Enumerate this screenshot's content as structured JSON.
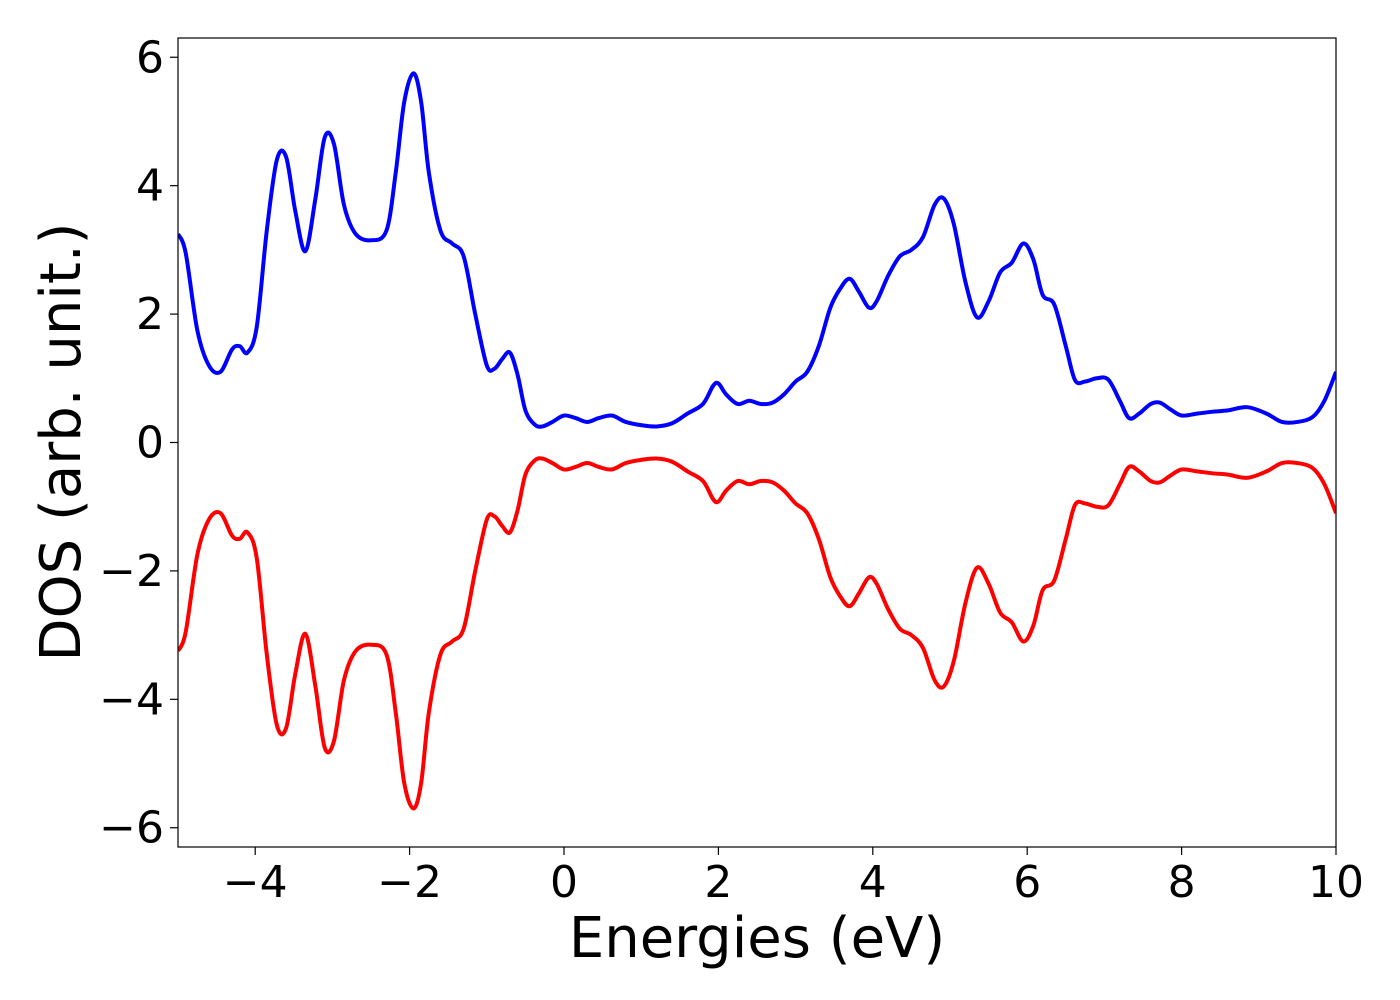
{
  "chart_data": {
    "type": "line",
    "title": "",
    "xlabel": "Energies (eV)",
    "ylabel": "DOS (arb. unit.)",
    "xlim": [
      -5,
      10
    ],
    "ylim": [
      -6.3,
      6.3
    ],
    "xticks": [
      -4,
      -2,
      0,
      2,
      4,
      6,
      8,
      10
    ],
    "xtick_labels": [
      "−4",
      "−2",
      "0",
      "2",
      "4",
      "6",
      "8",
      "10"
    ],
    "yticks": [
      -6,
      -4,
      -2,
      0,
      2,
      4,
      6
    ],
    "ytick_labels": [
      "−6",
      "−4",
      "−2",
      "0",
      "2",
      "4",
      "6"
    ],
    "grid": false,
    "legend": "none",
    "series": [
      {
        "color": "#0000ff",
        "x": [
          -5.0,
          -4.9,
          -4.75,
          -4.6,
          -4.45,
          -4.3,
          -4.2,
          -4.1,
          -3.98,
          -3.85,
          -3.72,
          -3.6,
          -3.48,
          -3.35,
          -3.22,
          -3.1,
          -2.98,
          -2.85,
          -2.7,
          -2.5,
          -2.3,
          -2.18,
          -2.07,
          -1.95,
          -1.85,
          -1.75,
          -1.6,
          -1.45,
          -1.3,
          -1.15,
          -1.0,
          -0.9,
          -0.8,
          -0.7,
          -0.6,
          -0.5,
          -0.38,
          -0.28,
          -0.15,
          0.0,
          0.15,
          0.3,
          0.45,
          0.62,
          0.8,
          1.0,
          1.2,
          1.4,
          1.6,
          1.8,
          1.93,
          2.0,
          2.1,
          2.25,
          2.4,
          2.55,
          2.7,
          2.85,
          3.0,
          3.15,
          3.3,
          3.45,
          3.58,
          3.7,
          3.82,
          3.95,
          4.05,
          4.2,
          4.35,
          4.5,
          4.65,
          4.8,
          4.92,
          5.05,
          5.2,
          5.35,
          5.5,
          5.65,
          5.8,
          5.95,
          6.08,
          6.2,
          6.35,
          6.5,
          6.62,
          6.75,
          6.9,
          7.05,
          7.2,
          7.32,
          7.45,
          7.6,
          7.72,
          7.85,
          8.0,
          8.2,
          8.4,
          8.6,
          8.85,
          9.1,
          9.3,
          9.5,
          9.7,
          9.85,
          10.0
        ],
        "y": [
          3.25,
          2.95,
          1.75,
          1.2,
          1.1,
          1.45,
          1.5,
          1.4,
          1.8,
          3.3,
          4.4,
          4.45,
          3.6,
          2.98,
          3.8,
          4.75,
          4.65,
          3.7,
          3.25,
          3.15,
          3.3,
          4.2,
          5.3,
          5.75,
          5.3,
          4.2,
          3.3,
          3.1,
          2.9,
          2.0,
          1.2,
          1.15,
          1.3,
          1.4,
          1.05,
          0.5,
          0.28,
          0.25,
          0.32,
          0.42,
          0.38,
          0.32,
          0.38,
          0.42,
          0.32,
          0.27,
          0.25,
          0.3,
          0.45,
          0.6,
          0.88,
          0.92,
          0.75,
          0.6,
          0.65,
          0.6,
          0.62,
          0.75,
          0.95,
          1.1,
          1.5,
          2.1,
          2.4,
          2.55,
          2.35,
          2.1,
          2.2,
          2.6,
          2.9,
          3.0,
          3.2,
          3.7,
          3.8,
          3.4,
          2.5,
          1.95,
          2.2,
          2.65,
          2.8,
          3.1,
          2.85,
          2.3,
          2.15,
          1.5,
          0.97,
          0.95,
          1.0,
          0.98,
          0.65,
          0.38,
          0.45,
          0.6,
          0.62,
          0.52,
          0.42,
          0.45,
          0.48,
          0.5,
          0.55,
          0.45,
          0.32,
          0.32,
          0.4,
          0.65,
          1.1
        ]
      },
      {
        "color": "#ff0000",
        "x": [
          -5.0,
          -4.9,
          -4.75,
          -4.6,
          -4.45,
          -4.3,
          -4.2,
          -4.1,
          -3.98,
          -3.85,
          -3.72,
          -3.6,
          -3.48,
          -3.35,
          -3.22,
          -3.1,
          -2.98,
          -2.85,
          -2.7,
          -2.5,
          -2.3,
          -2.18,
          -2.07,
          -1.95,
          -1.85,
          -1.75,
          -1.6,
          -1.45,
          -1.3,
          -1.15,
          -1.0,
          -0.9,
          -0.8,
          -0.7,
          -0.6,
          -0.5,
          -0.38,
          -0.28,
          -0.15,
          0.0,
          0.15,
          0.3,
          0.45,
          0.62,
          0.8,
          1.0,
          1.2,
          1.4,
          1.6,
          1.8,
          1.93,
          2.0,
          2.1,
          2.25,
          2.4,
          2.55,
          2.7,
          2.85,
          3.0,
          3.15,
          3.3,
          3.45,
          3.58,
          3.7,
          3.82,
          3.95,
          4.05,
          4.2,
          4.35,
          4.5,
          4.65,
          4.8,
          4.92,
          5.05,
          5.2,
          5.35,
          5.5,
          5.65,
          5.8,
          5.95,
          6.08,
          6.2,
          6.35,
          6.5,
          6.62,
          6.75,
          6.9,
          7.05,
          7.2,
          7.32,
          7.45,
          7.6,
          7.72,
          7.85,
          8.0,
          8.2,
          8.4,
          8.6,
          8.85,
          9.1,
          9.3,
          9.5,
          9.7,
          9.85,
          10.0
        ],
        "y": [
          -3.25,
          -2.95,
          -1.75,
          -1.2,
          -1.1,
          -1.45,
          -1.5,
          -1.4,
          -1.8,
          -3.3,
          -4.4,
          -4.45,
          -3.6,
          -2.98,
          -3.8,
          -4.75,
          -4.65,
          -3.7,
          -3.25,
          -3.15,
          -3.3,
          -4.2,
          -5.3,
          -5.7,
          -5.3,
          -4.2,
          -3.3,
          -3.1,
          -2.9,
          -2.0,
          -1.2,
          -1.15,
          -1.3,
          -1.4,
          -1.05,
          -0.5,
          -0.28,
          -0.25,
          -0.32,
          -0.42,
          -0.38,
          -0.32,
          -0.38,
          -0.42,
          -0.32,
          -0.27,
          -0.25,
          -0.3,
          -0.45,
          -0.6,
          -0.88,
          -0.92,
          -0.75,
          -0.6,
          -0.65,
          -0.6,
          -0.62,
          -0.75,
          -0.95,
          -1.1,
          -1.5,
          -2.1,
          -2.4,
          -2.55,
          -2.35,
          -2.1,
          -2.2,
          -2.6,
          -2.9,
          -3.0,
          -3.2,
          -3.7,
          -3.8,
          -3.4,
          -2.5,
          -1.95,
          -2.2,
          -2.65,
          -2.8,
          -3.1,
          -2.85,
          -2.3,
          -2.15,
          -1.5,
          -0.97,
          -0.95,
          -1.0,
          -0.98,
          -0.65,
          -0.38,
          -0.45,
          -0.6,
          -0.62,
          -0.52,
          -0.42,
          -0.45,
          -0.48,
          -0.5,
          -0.55,
          -0.45,
          -0.32,
          -0.32,
          -0.4,
          -0.65,
          -1.1
        ]
      }
    ]
  }
}
